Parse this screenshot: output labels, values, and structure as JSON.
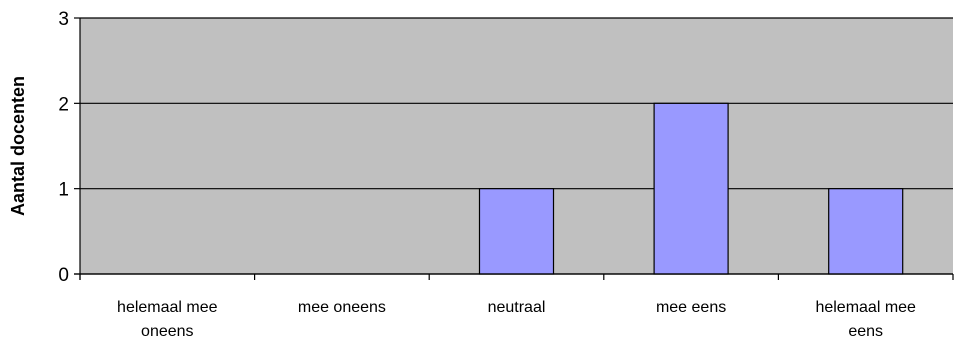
{
  "chart_data": {
    "type": "bar",
    "categories": [
      [
        "helemaal mee",
        "oneens"
      ],
      [
        "mee oneens"
      ],
      [
        "neutraal"
      ],
      [
        "mee eens"
      ],
      [
        "helemaal mee",
        "eens"
      ]
    ],
    "values": [
      0,
      0,
      1,
      2,
      1
    ],
    "ylabel": "Aantal docenten",
    "xlabel": "",
    "title": "",
    "ylim": [
      0,
      3
    ],
    "yticks": [
      "0",
      "1",
      "2",
      "3"
    ],
    "grid": true,
    "legend": "none",
    "colors": {
      "plot_background": "#c0c0c0",
      "bar_fill": "#9999ff",
      "bar_stroke": "#000000",
      "gridline": "#000000",
      "axis": "#000000"
    }
  }
}
